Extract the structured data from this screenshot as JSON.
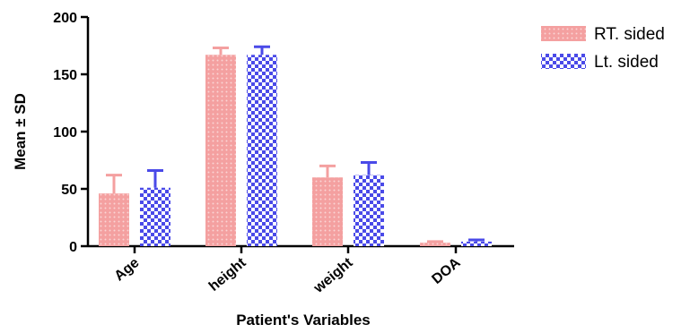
{
  "chart_data": {
    "type": "bar",
    "categories": [
      "Age",
      "height",
      "weight",
      "DOA"
    ],
    "series": [
      {
        "name": "RT. sided",
        "values": [
          46,
          167,
          60,
          3
        ],
        "error": [
          16,
          6,
          10,
          1
        ],
        "color": "#f4a0a0",
        "pattern": "dotted"
      },
      {
        "name": "Lt. sided",
        "values": [
          51,
          167,
          62,
          4
        ],
        "error": [
          15,
          7,
          11,
          1.5
        ],
        "color": "#4a4ae8",
        "pattern": "checkered"
      }
    ],
    "xlabel": "Patient's Variables",
    "ylabel": "Mean ± SD",
    "ylim": [
      0,
      200
    ],
    "yticks": [
      0,
      50,
      100,
      150,
      200
    ],
    "grid": false,
    "legend": "top-right"
  }
}
